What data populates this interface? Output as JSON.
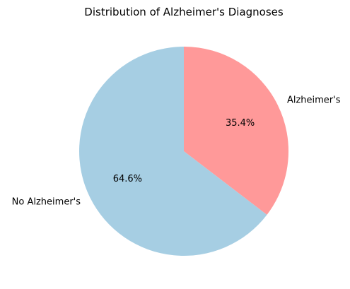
{
  "chart_data": {
    "type": "pie",
    "title": "Distribution of Alzheimer's Diagnoses",
    "slices": [
      {
        "label": "Alzheimer's",
        "value": 35.4,
        "pct_label": "35.4%",
        "color": "#ff9999"
      },
      {
        "label": "No Alzheimer's",
        "value": 64.6,
        "pct_label": "64.6%",
        "color": "#a6cee3"
      }
    ],
    "start_angle_deg": 90,
    "direction": "clockwise",
    "legend": "none"
  }
}
